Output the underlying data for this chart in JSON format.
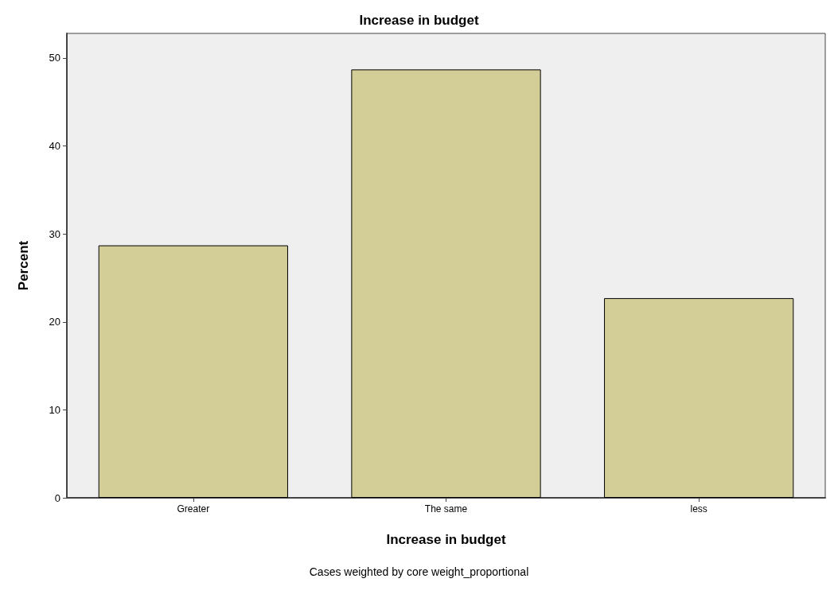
{
  "chart_data": {
    "type": "bar",
    "title": "Increase in budget",
    "xlabel": "Increase in budget",
    "ylabel": "Percent",
    "categories": [
      "Greater",
      "The same",
      "less"
    ],
    "values": [
      28.7,
      48.7,
      22.7
    ],
    "color": "#d3cd97",
    "ylim": [
      0,
      52.8
    ],
    "yticks": [
      0,
      10,
      20,
      30,
      40,
      50
    ],
    "grid": false,
    "annotations": [
      "Cases weighted by core weight_proportional"
    ]
  }
}
